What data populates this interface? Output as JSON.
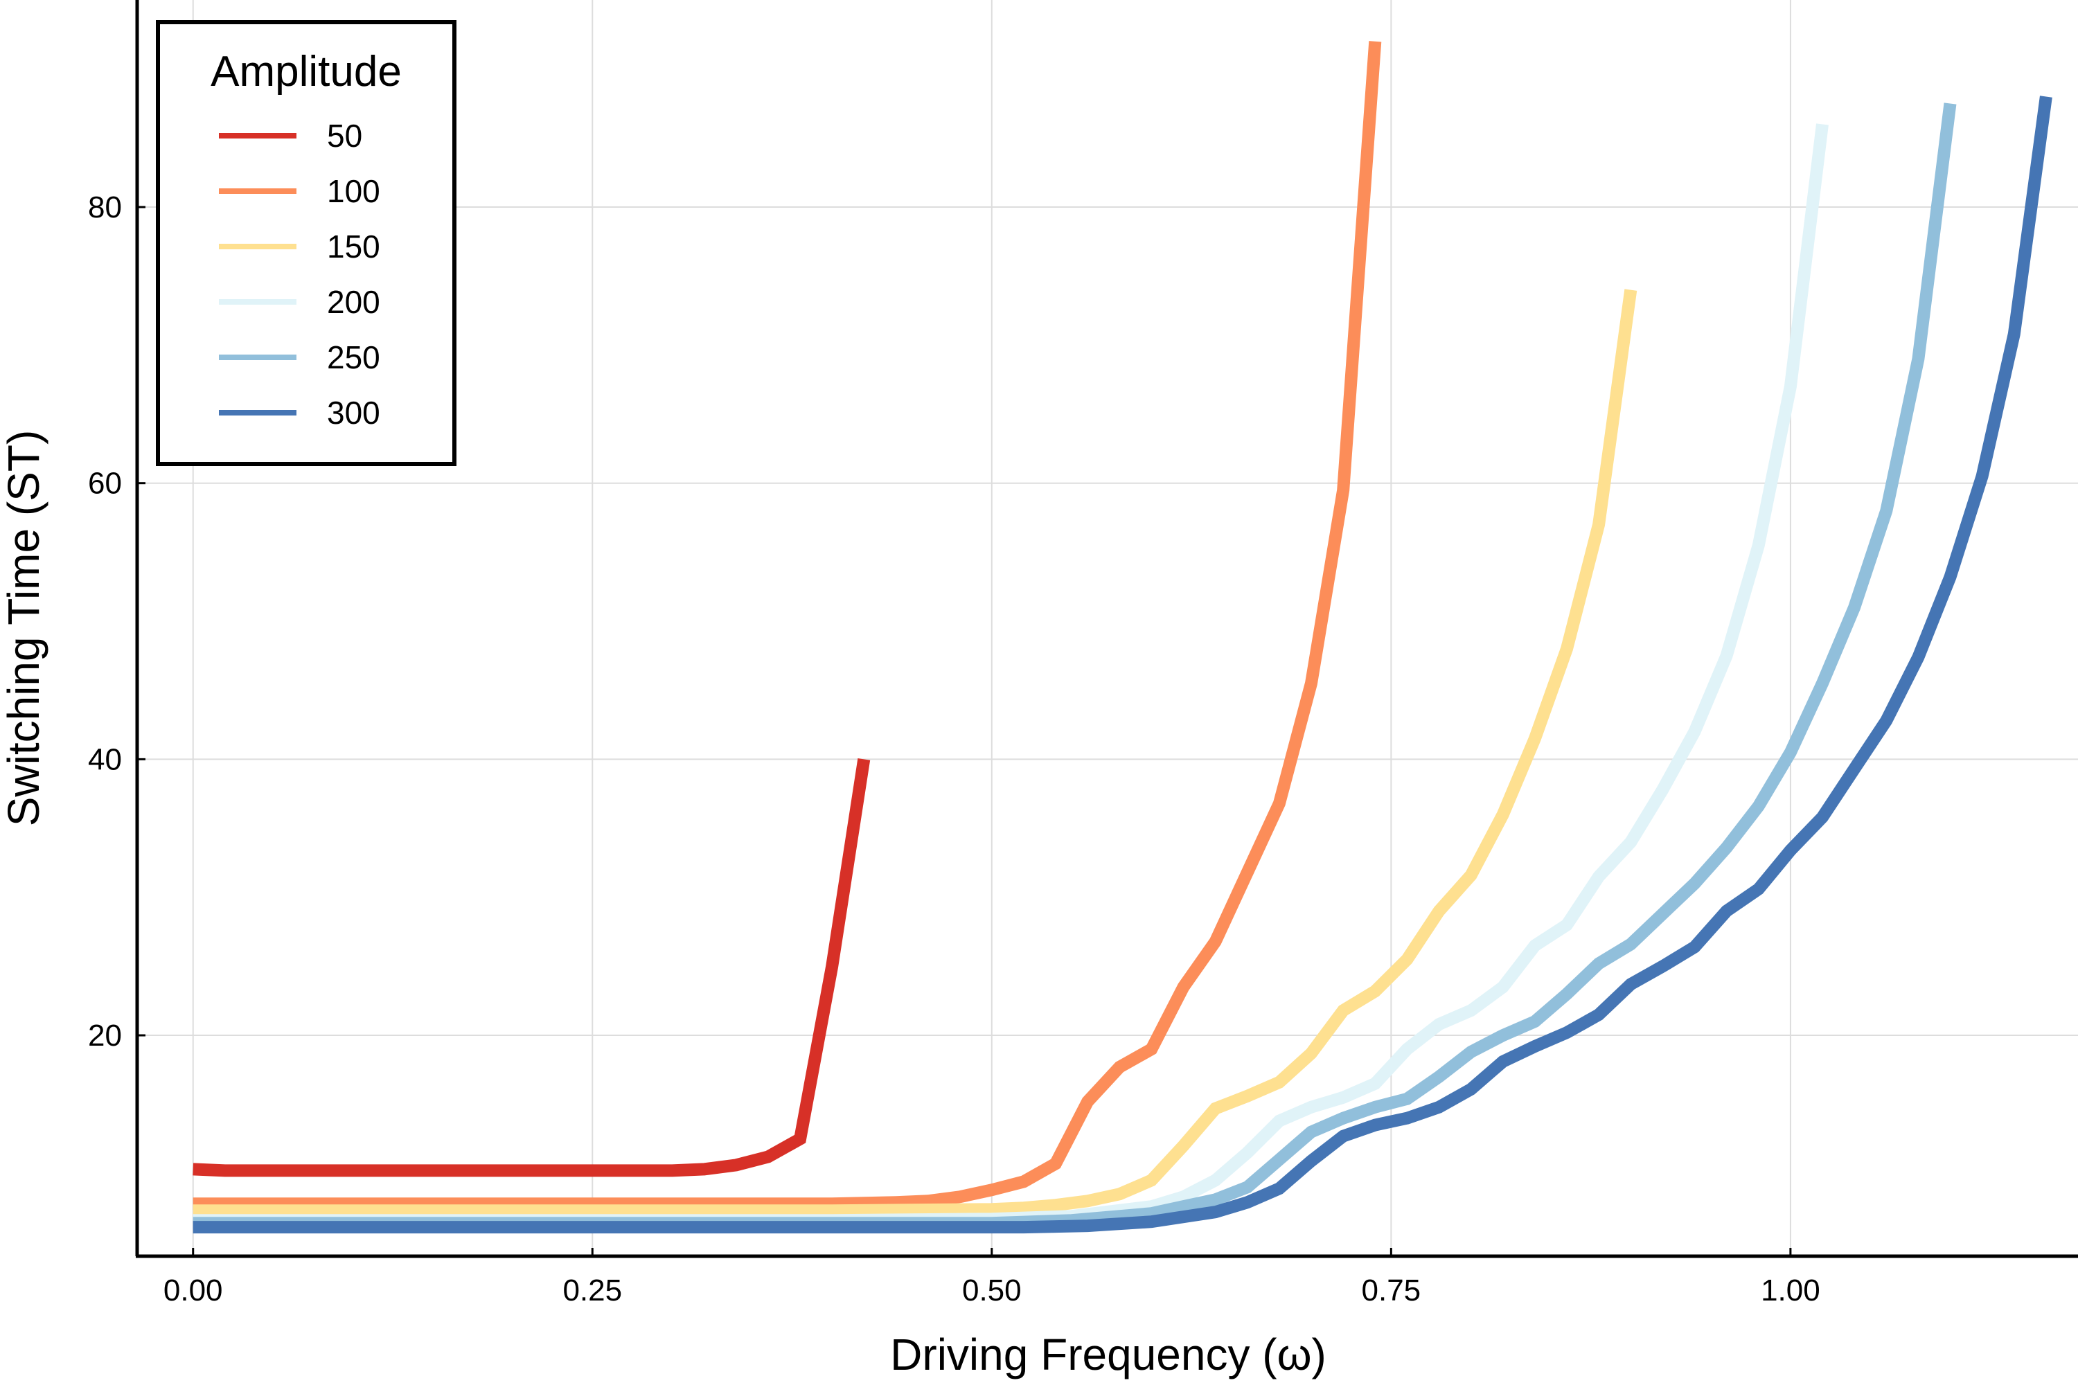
{
  "chart_data": {
    "type": "line",
    "title": "",
    "xlabel": "Driving Frequency (ω)",
    "ylabel": "Switching Time (ST)",
    "xlim": [
      -0.035,
      1.18
    ],
    "ylim": [
      4,
      95
    ],
    "xticks": [
      0.0,
      0.25,
      0.5,
      0.75,
      1.0
    ],
    "xtick_labels": [
      "0.00",
      "0.25",
      "0.50",
      "0.75",
      "1.00"
    ],
    "yticks": [
      20,
      40,
      60,
      80
    ],
    "ytick_labels": [
      "20",
      "40",
      "60",
      "80"
    ],
    "grid": true,
    "legend": {
      "title": "Amplitude",
      "placement": "top-left"
    },
    "series": [
      {
        "name": "50",
        "color": "#d73027",
        "x": [
          0.0,
          0.02,
          0.1,
          0.2,
          0.3,
          0.32,
          0.34,
          0.36,
          0.38,
          0.4,
          0.42
        ],
        "y": [
          10.3,
          10.2,
          10.2,
          10.2,
          10.2,
          10.3,
          10.6,
          11.2,
          12.5,
          25.0,
          40.0
        ]
      },
      {
        "name": "100",
        "color": "#fc8d59",
        "x": [
          0.0,
          0.1,
          0.2,
          0.3,
          0.4,
          0.44,
          0.46,
          0.48,
          0.5,
          0.52,
          0.54,
          0.56,
          0.58,
          0.6,
          0.62,
          0.64,
          0.66,
          0.68,
          0.7,
          0.72,
          0.74
        ],
        "y": [
          7.8,
          7.8,
          7.8,
          7.8,
          7.8,
          7.9,
          8.0,
          8.3,
          8.8,
          9.4,
          10.7,
          15.2,
          17.7,
          19.0,
          23.5,
          26.8,
          31.8,
          36.8,
          45.5,
          59.5,
          92.0
        ]
      },
      {
        "name": "150",
        "color": "#fee090",
        "x": [
          0.0,
          0.1,
          0.2,
          0.3,
          0.4,
          0.5,
          0.52,
          0.54,
          0.56,
          0.58,
          0.6,
          0.62,
          0.64,
          0.66,
          0.68,
          0.7,
          0.72,
          0.74,
          0.76,
          0.78,
          0.8,
          0.82,
          0.84,
          0.86,
          0.88,
          0.9
        ],
        "y": [
          7.3,
          7.3,
          7.3,
          7.3,
          7.3,
          7.4,
          7.5,
          7.7,
          8.0,
          8.5,
          9.5,
          12.0,
          14.7,
          15.6,
          16.6,
          18.7,
          21.8,
          23.2,
          25.5,
          29.0,
          31.6,
          36.0,
          41.5,
          48.0,
          57.0,
          74.0
        ]
      },
      {
        "name": "200",
        "color": "#e0f3f8",
        "x": [
          0.0,
          0.1,
          0.2,
          0.3,
          0.4,
          0.5,
          0.55,
          0.6,
          0.62,
          0.64,
          0.66,
          0.68,
          0.7,
          0.72,
          0.74,
          0.76,
          0.78,
          0.8,
          0.82,
          0.84,
          0.86,
          0.88,
          0.9,
          0.92,
          0.94,
          0.96,
          0.98,
          1.0,
          1.02
        ],
        "y": [
          6.6,
          6.6,
          6.6,
          6.6,
          6.6,
          6.7,
          6.9,
          7.6,
          8.3,
          9.5,
          11.5,
          13.8,
          14.8,
          15.5,
          16.5,
          19.0,
          20.8,
          21.8,
          23.5,
          26.5,
          28.0,
          31.5,
          34.0,
          37.8,
          42.0,
          47.5,
          55.5,
          67.0,
          86.0
        ]
      },
      {
        "name": "250",
        "color": "#91bfdb",
        "x": [
          0.0,
          0.1,
          0.2,
          0.3,
          0.4,
          0.5,
          0.55,
          0.6,
          0.62,
          0.64,
          0.66,
          0.68,
          0.7,
          0.72,
          0.74,
          0.76,
          0.78,
          0.8,
          0.82,
          0.84,
          0.86,
          0.88,
          0.9,
          0.92,
          0.94,
          0.96,
          0.98,
          1.0,
          1.02,
          1.04,
          1.06,
          1.08,
          1.1
        ],
        "y": [
          6.4,
          6.4,
          6.4,
          6.4,
          6.4,
          6.4,
          6.6,
          7.1,
          7.6,
          8.1,
          9.0,
          11.0,
          13.0,
          14.0,
          14.8,
          15.4,
          17.0,
          18.8,
          20.0,
          21.0,
          23.0,
          25.2,
          26.6,
          28.8,
          31.0,
          33.6,
          36.6,
          40.5,
          45.5,
          51.0,
          58.0,
          69.0,
          87.5
        ]
      },
      {
        "name": "300",
        "color": "#4575b4",
        "x": [
          0.0,
          0.1,
          0.2,
          0.3,
          0.4,
          0.5,
          0.52,
          0.56,
          0.6,
          0.64,
          0.66,
          0.68,
          0.7,
          0.72,
          0.74,
          0.76,
          0.78,
          0.8,
          0.82,
          0.84,
          0.86,
          0.88,
          0.9,
          0.92,
          0.94,
          0.96,
          0.98,
          1.0,
          1.02,
          1.04,
          1.06,
          1.08,
          1.1,
          1.12,
          1.14,
          1.16
        ],
        "y": [
          6.1,
          6.1,
          6.1,
          6.1,
          6.1,
          6.1,
          6.1,
          6.2,
          6.5,
          7.2,
          7.9,
          8.9,
          10.9,
          12.7,
          13.5,
          14.0,
          14.8,
          16.1,
          18.1,
          19.2,
          20.2,
          21.5,
          23.7,
          25.0,
          26.4,
          29.0,
          30.6,
          33.4,
          35.8,
          39.3,
          42.8,
          47.4,
          53.2,
          60.5,
          70.8,
          88.0
        ]
      }
    ]
  }
}
